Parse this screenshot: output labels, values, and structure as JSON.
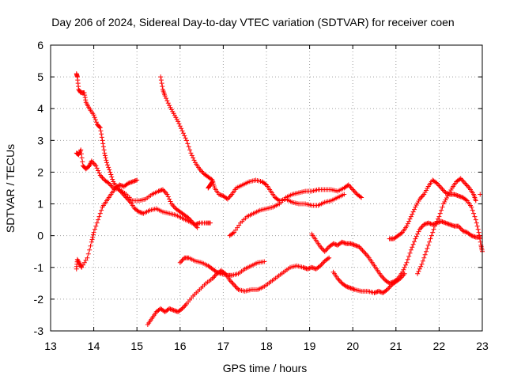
{
  "chart_data": {
    "type": "scatter",
    "title": "Day 206 of 2024, Sidereal Day-to-day VTEC variation (SDTVAR) for receiver coen",
    "xlabel": "GPS time / hours",
    "ylabel": "SDTVAR / TECUs",
    "xlim": [
      13,
      23
    ],
    "ylim": [
      -3,
      6
    ],
    "xticks": [
      "13",
      "14",
      "15",
      "16",
      "17",
      "18",
      "19",
      "20",
      "21",
      "22",
      "23"
    ],
    "yticks": [
      "-3",
      "-2",
      "-1",
      "0",
      "1",
      "2",
      "3",
      "4",
      "5",
      "6"
    ],
    "grid": true,
    "marker": "plus",
    "color": "#ff0000",
    "series": [
      {
        "points": [
          [
            13.6,
            5.1
          ],
          [
            13.62,
            5.0
          ],
          [
            13.65,
            4.6
          ],
          [
            13.7,
            4.5
          ],
          [
            13.78,
            4.5
          ],
          [
            13.82,
            4.2
          ],
          [
            13.9,
            4.0
          ],
          [
            14.0,
            3.8
          ],
          [
            14.08,
            3.5
          ],
          [
            14.15,
            3.4
          ],
          [
            14.2,
            3.0
          ],
          [
            14.25,
            2.6
          ],
          [
            14.3,
            2.3
          ],
          [
            14.38,
            2.0
          ],
          [
            14.45,
            1.7
          ],
          [
            14.55,
            1.5
          ],
          [
            14.65,
            1.35
          ],
          [
            14.75,
            1.2
          ],
          [
            14.85,
            1.05
          ],
          [
            14.95,
            0.85
          ],
          [
            15.05,
            0.75
          ],
          [
            15.15,
            0.7
          ],
          [
            15.3,
            0.8
          ],
          [
            15.45,
            0.85
          ],
          [
            15.6,
            0.75
          ],
          [
            15.75,
            0.7
          ],
          [
            15.9,
            0.65
          ],
          [
            16.05,
            0.55
          ],
          [
            16.2,
            0.45
          ],
          [
            16.35,
            0.35
          ],
          [
            16.45,
            0.4
          ],
          [
            16.6,
            0.4
          ],
          [
            16.7,
            0.4
          ]
        ]
      },
      {
        "points": [
          [
            13.6,
            2.6
          ],
          [
            13.65,
            2.55
          ],
          [
            13.7,
            2.7
          ],
          [
            13.75,
            2.2
          ],
          [
            13.82,
            2.1
          ],
          [
            13.9,
            2.2
          ],
          [
            13.95,
            2.35
          ],
          [
            14.05,
            2.2
          ],
          [
            14.15,
            1.9
          ],
          [
            14.25,
            1.75
          ],
          [
            14.35,
            1.65
          ],
          [
            14.45,
            1.5
          ],
          [
            14.6,
            1.45
          ],
          [
            14.75,
            1.3
          ],
          [
            14.9,
            1.1
          ],
          [
            15.05,
            1.1
          ],
          [
            15.2,
            1.15
          ],
          [
            15.35,
            1.3
          ],
          [
            15.5,
            1.4
          ],
          [
            15.6,
            1.45
          ],
          [
            15.7,
            1.3
          ],
          [
            15.8,
            1.0
          ],
          [
            15.9,
            0.85
          ],
          [
            16.0,
            0.75
          ],
          [
            16.1,
            0.65
          ],
          [
            16.2,
            0.55
          ],
          [
            16.3,
            0.4
          ],
          [
            16.4,
            0.25
          ]
        ]
      },
      {
        "points": [
          [
            13.6,
            -1.05
          ],
          [
            13.62,
            -0.75
          ],
          [
            13.68,
            -0.9
          ],
          [
            13.72,
            -1.0
          ],
          [
            13.85,
            -0.7
          ],
          [
            13.95,
            -0.2
          ],
          [
            14.0,
            0.1
          ],
          [
            14.1,
            0.5
          ],
          [
            14.2,
            0.9
          ],
          [
            14.3,
            1.1
          ],
          [
            14.4,
            1.3
          ],
          [
            14.5,
            1.5
          ],
          [
            14.6,
            1.6
          ],
          [
            14.7,
            1.55
          ],
          [
            14.8,
            1.65
          ],
          [
            14.9,
            1.7
          ],
          [
            15.0,
            1.75
          ]
        ]
      },
      {
        "points": [
          [
            15.55,
            5.0
          ],
          [
            15.6,
            4.6
          ],
          [
            15.65,
            4.4
          ],
          [
            15.75,
            4.1
          ],
          [
            15.85,
            3.85
          ],
          [
            15.95,
            3.6
          ],
          [
            16.05,
            3.3
          ],
          [
            16.15,
            3.0
          ],
          [
            16.25,
            2.6
          ],
          [
            16.35,
            2.3
          ],
          [
            16.45,
            2.1
          ],
          [
            16.55,
            1.95
          ],
          [
            16.65,
            1.85
          ],
          [
            16.75,
            1.75
          ],
          [
            16.8,
            1.5
          ],
          [
            16.9,
            1.3
          ],
          [
            17.0,
            1.25
          ],
          [
            17.1,
            1.15
          ],
          [
            17.2,
            1.3
          ],
          [
            17.3,
            1.5
          ],
          [
            17.45,
            1.6
          ],
          [
            17.6,
            1.7
          ],
          [
            17.75,
            1.75
          ],
          [
            17.9,
            1.7
          ],
          [
            18.0,
            1.6
          ],
          [
            18.1,
            1.4
          ],
          [
            18.2,
            1.2
          ],
          [
            18.3,
            1.1
          ],
          [
            18.45,
            1.15
          ],
          [
            18.6,
            1.05
          ],
          [
            18.75,
            1.0
          ],
          [
            18.9,
            1.0
          ],
          [
            19.05,
            0.95
          ],
          [
            19.2,
            0.95
          ],
          [
            19.35,
            1.05
          ],
          [
            19.5,
            1.1
          ],
          [
            19.65,
            1.2
          ],
          [
            19.8,
            1.3
          ]
        ]
      },
      {
        "points": [
          [
            16.65,
            1.5
          ],
          [
            16.7,
            1.6
          ],
          [
            16.75,
            1.7
          ]
        ]
      },
      {
        "points": [
          [
            17.15,
            0.0
          ],
          [
            17.25,
            0.1
          ],
          [
            17.4,
            0.4
          ],
          [
            17.55,
            0.6
          ],
          [
            17.7,
            0.7
          ],
          [
            17.85,
            0.8
          ],
          [
            18.0,
            0.85
          ],
          [
            18.15,
            0.9
          ],
          [
            18.3,
            1.0
          ],
          [
            18.45,
            1.2
          ],
          [
            18.6,
            1.3
          ],
          [
            18.75,
            1.35
          ],
          [
            18.9,
            1.4
          ],
          [
            19.05,
            1.4
          ],
          [
            19.2,
            1.45
          ],
          [
            19.35,
            1.45
          ],
          [
            19.5,
            1.45
          ],
          [
            19.65,
            1.4
          ],
          [
            19.8,
            1.5
          ],
          [
            19.9,
            1.6
          ],
          [
            20.0,
            1.45
          ],
          [
            20.1,
            1.3
          ],
          [
            20.2,
            1.2
          ]
        ]
      },
      {
        "points": [
          [
            16.0,
            -0.85
          ],
          [
            16.1,
            -0.7
          ],
          [
            16.2,
            -0.7
          ],
          [
            16.35,
            -0.8
          ],
          [
            16.5,
            -0.85
          ],
          [
            16.65,
            -0.95
          ],
          [
            16.75,
            -1.05
          ],
          [
            16.85,
            -1.15
          ],
          [
            16.95,
            -1.2
          ],
          [
            17.1,
            -1.25
          ],
          [
            17.2,
            -1.25
          ],
          [
            17.35,
            -1.2
          ],
          [
            17.5,
            -1.05
          ],
          [
            17.65,
            -0.95
          ],
          [
            17.8,
            -0.85
          ],
          [
            17.95,
            -0.82
          ]
        ]
      },
      {
        "points": [
          [
            15.25,
            -2.8
          ],
          [
            15.35,
            -2.6
          ],
          [
            15.45,
            -2.4
          ],
          [
            15.55,
            -2.3
          ],
          [
            15.65,
            -2.4
          ],
          [
            15.75,
            -2.3
          ],
          [
            15.85,
            -2.35
          ],
          [
            15.95,
            -2.4
          ],
          [
            16.05,
            -2.3
          ],
          [
            16.15,
            -2.15
          ],
          [
            16.3,
            -1.9
          ],
          [
            16.45,
            -1.7
          ],
          [
            16.6,
            -1.5
          ],
          [
            16.75,
            -1.35
          ],
          [
            16.85,
            -1.2
          ],
          [
            16.95,
            -1.1
          ],
          [
            17.05,
            -1.2
          ],
          [
            17.15,
            -1.4
          ],
          [
            17.25,
            -1.55
          ],
          [
            17.35,
            -1.7
          ],
          [
            17.5,
            -1.75
          ],
          [
            17.65,
            -1.7
          ],
          [
            17.8,
            -1.7
          ],
          [
            17.95,
            -1.6
          ],
          [
            18.1,
            -1.45
          ],
          [
            18.25,
            -1.3
          ],
          [
            18.4,
            -1.15
          ],
          [
            18.55,
            -1.0
          ],
          [
            18.7,
            -0.95
          ],
          [
            18.85,
            -1.0
          ],
          [
            18.95,
            -1.05
          ],
          [
            19.05,
            -1.0
          ],
          [
            19.15,
            -1.05
          ],
          [
            19.25,
            -0.95
          ],
          [
            19.35,
            -0.8
          ],
          [
            19.45,
            -0.7
          ]
        ]
      },
      {
        "points": [
          [
            19.05,
            0.05
          ],
          [
            19.15,
            -0.15
          ],
          [
            19.25,
            -0.35
          ],
          [
            19.35,
            -0.5
          ],
          [
            19.45,
            -0.35
          ],
          [
            19.55,
            -0.25
          ],
          [
            19.65,
            -0.3
          ],
          [
            19.75,
            -0.2
          ],
          [
            19.85,
            -0.25
          ],
          [
            19.95,
            -0.25
          ],
          [
            20.05,
            -0.3
          ],
          [
            20.15,
            -0.35
          ],
          [
            20.25,
            -0.5
          ],
          [
            20.35,
            -0.65
          ],
          [
            20.45,
            -0.85
          ],
          [
            20.55,
            -1.05
          ],
          [
            20.65,
            -1.25
          ],
          [
            20.75,
            -1.4
          ],
          [
            20.85,
            -1.5
          ],
          [
            20.95,
            -1.45
          ],
          [
            21.05,
            -1.35
          ],
          [
            21.15,
            -1.15
          ],
          [
            21.25,
            -0.85
          ],
          [
            21.35,
            -0.45
          ],
          [
            21.45,
            -0.1
          ],
          [
            21.55,
            0.2
          ],
          [
            21.65,
            0.35
          ],
          [
            21.75,
            0.4
          ],
          [
            21.85,
            0.35
          ],
          [
            21.95,
            0.4
          ],
          [
            22.05,
            0.45
          ],
          [
            22.15,
            0.4
          ],
          [
            22.25,
            0.35
          ],
          [
            22.35,
            0.3
          ],
          [
            22.45,
            0.3
          ],
          [
            22.55,
            0.15
          ],
          [
            22.65,
            0.1
          ],
          [
            22.75,
            0.0
          ],
          [
            22.85,
            -0.05
          ],
          [
            22.95,
            -0.05
          ]
        ]
      },
      {
        "points": [
          [
            19.55,
            -1.15
          ],
          [
            19.65,
            -1.35
          ],
          [
            19.75,
            -1.5
          ],
          [
            19.85,
            -1.6
          ],
          [
            19.95,
            -1.65
          ],
          [
            20.05,
            -1.7
          ],
          [
            20.2,
            -1.75
          ],
          [
            20.35,
            -1.75
          ],
          [
            20.5,
            -1.8
          ],
          [
            20.6,
            -1.75
          ],
          [
            20.7,
            -1.8
          ],
          [
            20.8,
            -1.7
          ],
          [
            20.9,
            -1.55
          ],
          [
            21.0,
            -1.45
          ],
          [
            21.1,
            -1.35
          ],
          [
            21.2,
            -1.2
          ]
        ]
      },
      {
        "points": [
          [
            20.85,
            -0.1
          ],
          [
            20.95,
            -0.1
          ],
          [
            21.05,
            0.0
          ],
          [
            21.15,
            0.1
          ],
          [
            21.25,
            0.3
          ],
          [
            21.35,
            0.6
          ],
          [
            21.45,
            0.9
          ],
          [
            21.55,
            1.15
          ],
          [
            21.65,
            1.3
          ],
          [
            21.75,
            1.55
          ],
          [
            21.85,
            1.75
          ],
          [
            21.95,
            1.65
          ],
          [
            22.05,
            1.5
          ],
          [
            22.15,
            1.35
          ],
          [
            22.25,
            1.3
          ],
          [
            22.35,
            1.3
          ],
          [
            22.45,
            1.25
          ],
          [
            22.55,
            1.2
          ],
          [
            22.65,
            1.1
          ],
          [
            22.75,
            0.9
          ],
          [
            22.85,
            0.5
          ],
          [
            22.92,
            0.1
          ],
          [
            22.97,
            -0.3
          ],
          [
            23.0,
            -0.5
          ]
        ]
      },
      {
        "points": [
          [
            21.5,
            -1.2
          ],
          [
            21.6,
            -0.9
          ],
          [
            21.7,
            -0.5
          ],
          [
            21.8,
            -0.1
          ],
          [
            21.9,
            0.3
          ],
          [
            22.0,
            0.6
          ],
          [
            22.1,
            1.0
          ],
          [
            22.2,
            1.25
          ],
          [
            22.3,
            1.5
          ],
          [
            22.4,
            1.7
          ],
          [
            22.5,
            1.8
          ],
          [
            22.6,
            1.65
          ],
          [
            22.7,
            1.5
          ],
          [
            22.8,
            1.3
          ],
          [
            22.85,
            1.1
          ]
        ]
      },
      {
        "points": [
          [
            22.95,
            1.3
          ]
        ]
      }
    ]
  }
}
